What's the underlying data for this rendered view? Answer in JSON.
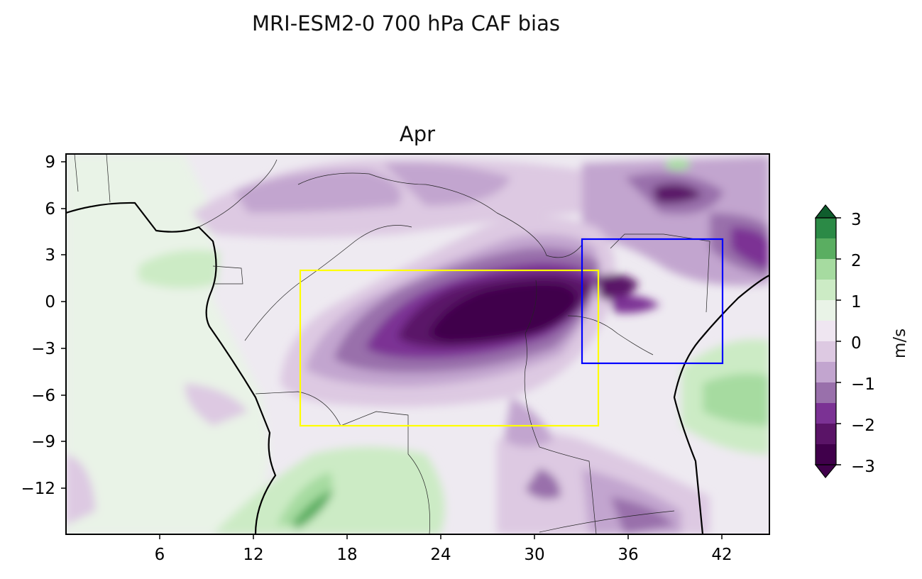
{
  "title": "MRI-ESM2-0 700 hPa CAF bias",
  "panel_title": "Apr",
  "colorbar": {
    "label": "m/s",
    "ticks": [
      "−3",
      "−2",
      "−1",
      "0",
      "1",
      "2",
      "3"
    ],
    "tick_values": [
      -3,
      -2,
      -1,
      0,
      1,
      2,
      3
    ],
    "levels": [
      -3,
      -2.5,
      -2,
      -1.5,
      -1,
      -0.5,
      0,
      0.5,
      1,
      1.5,
      2,
      2.5,
      3
    ],
    "colors": [
      "#40004b",
      "#5a1467",
      "#7b3294",
      "#9970ab",
      "#c2a5cf",
      "#ddc9e2",
      "#efe6f1",
      "#e9f3e7",
      "#ccebc5",
      "#a6dba0",
      "#5aae61",
      "#2b8a46",
      "#0f5d2d"
    ],
    "extend": "both"
  },
  "axes": {
    "x_ticks": [
      "6",
      "12",
      "18",
      "24",
      "30",
      "36",
      "42"
    ],
    "x_tick_values": [
      6,
      12,
      18,
      24,
      30,
      36,
      42
    ],
    "y_ticks": [
      "9",
      "6",
      "3",
      "0",
      "−3",
      "−6",
      "−9",
      "−12"
    ],
    "y_tick_values": [
      9,
      6,
      3,
      0,
      -3,
      -6,
      -9,
      -12
    ],
    "xlim": [
      0,
      45
    ],
    "ylim": [
      -15,
      9.5
    ]
  },
  "boxes": [
    {
      "color": "#ffff00",
      "lon": [
        15,
        34
      ],
      "lat": [
        -8,
        2
      ]
    },
    {
      "color": "#0000ff",
      "lon": [
        33,
        42
      ],
      "lat": [
        -4,
        4
      ]
    }
  ],
  "chart_data": {
    "type": "heatmap",
    "title": "MRI-ESM2-0 700 hPa CAF bias",
    "subtitle": "Apr",
    "colorbar_label": "m/s",
    "xlim": [
      0,
      45
    ],
    "ylim": [
      -15,
      9.5
    ]
  }
}
